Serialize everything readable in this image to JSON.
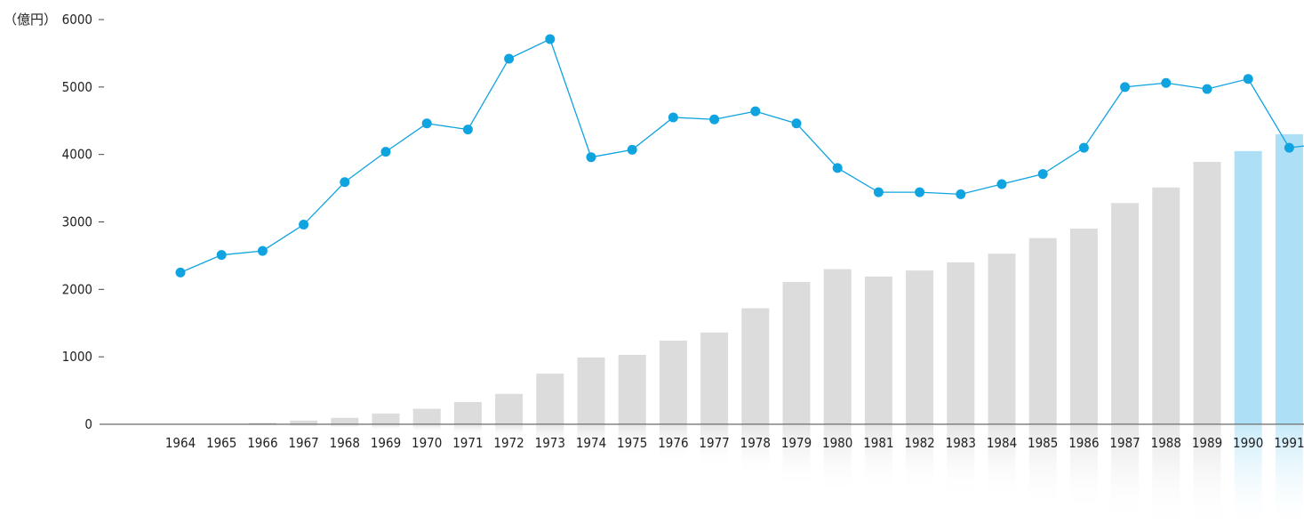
{
  "chart_data": {
    "type": "bar",
    "unit_label": "（億円）",
    "y_ticks": [
      0,
      1000,
      2000,
      3000,
      4000,
      5000,
      6000
    ],
    "ylim": [
      0,
      6000
    ],
    "categories": [
      "1964",
      "1965",
      "1966",
      "1967",
      "1968",
      "1969",
      "1970",
      "1971",
      "1972",
      "1973",
      "1974",
      "1975",
      "1976",
      "1977",
      "1978",
      "1979",
      "1980",
      "1981",
      "1982",
      "1983",
      "1984",
      "1985",
      "1986",
      "1987",
      "1988",
      "1989",
      "1990",
      "1991"
    ],
    "series": [
      {
        "type": "bar",
        "values": [
          0,
          5,
          20,
          55,
          95,
          160,
          230,
          330,
          450,
          750,
          990,
          1030,
          1240,
          1360,
          1720,
          2110,
          2300,
          2190,
          2280,
          2400,
          2530,
          2760,
          2900,
          3280,
          3510,
          3890,
          4050,
          4300
        ],
        "highlight_from_index": 26
      },
      {
        "type": "line",
        "values": [
          2250,
          2510,
          2570,
          2960,
          3590,
          4040,
          4460,
          4370,
          5420,
          5710,
          3960,
          4070,
          4550,
          4520,
          4640,
          4460,
          3800,
          3440,
          3440,
          3410,
          3560,
          3710,
          4100,
          5000,
          5060,
          4970,
          5120,
          4100
        ]
      }
    ],
    "colors": {
      "bar": "#dcdcdd",
      "bar_highlight": "#ade0f7",
      "line": "#0fa3e0",
      "axis": "#444444"
    }
  }
}
